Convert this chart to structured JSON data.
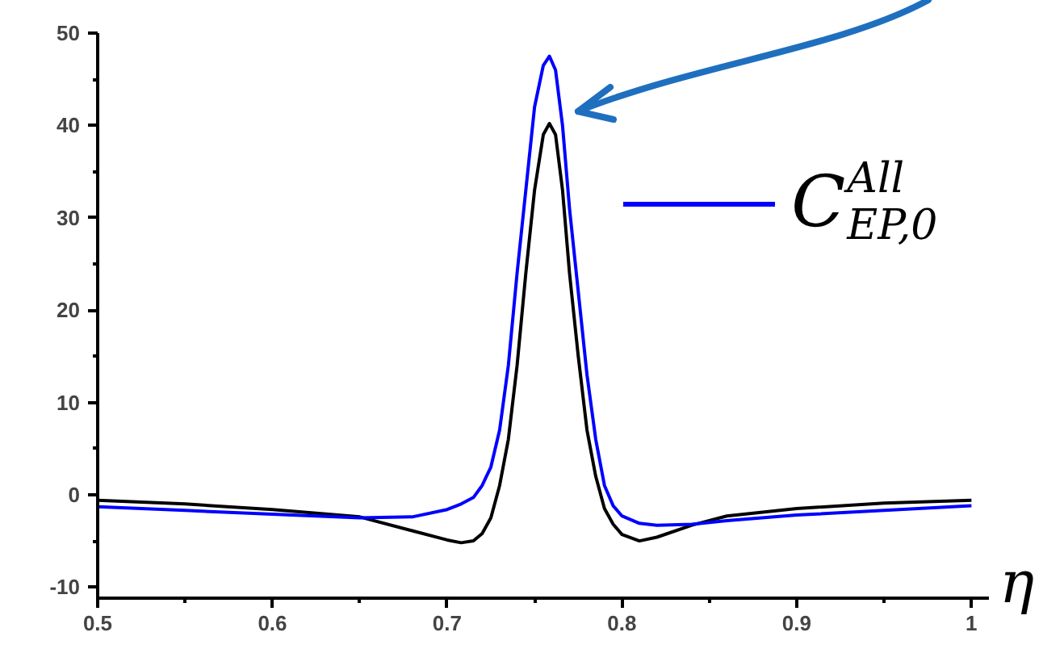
{
  "chart_data": {
    "type": "line",
    "xlabel": "η",
    "x": [
      0.5,
      0.55,
      0.6,
      0.65,
      0.68,
      0.7,
      0.708,
      0.715,
      0.72,
      0.725,
      0.73,
      0.735,
      0.74,
      0.745,
      0.75,
      0.755,
      0.7585,
      0.762,
      0.766,
      0.77,
      0.775,
      0.78,
      0.785,
      0.79,
      0.795,
      0.8,
      0.81,
      0.82,
      0.84,
      0.86,
      0.9,
      0.95,
      1.0
    ],
    "series": [
      {
        "color": "#000000",
        "values": [
          -0.6,
          -1.0,
          -1.6,
          -2.4,
          -3.9,
          -4.9,
          -5.2,
          -5.0,
          -4.2,
          -2.5,
          1,
          6,
          14,
          24,
          33,
          39,
          40.2,
          39,
          33,
          24,
          15,
          7,
          2,
          -1.5,
          -3.2,
          -4.3,
          -5.0,
          -4.6,
          -3.3,
          -2.3,
          -1.5,
          -0.9,
          -0.6
        ]
      },
      {
        "name": "C$^{All}$$_{EP,0}$",
        "color": "#0000ff",
        "values": [
          -1.3,
          -1.7,
          -2.1,
          -2.5,
          -2.4,
          -1.6,
          -1.0,
          -0.3,
          1,
          3,
          7,
          14,
          24,
          33,
          42,
          46.5,
          47.5,
          46,
          40,
          31,
          22,
          13,
          6,
          1,
          -1.2,
          -2.3,
          -3.1,
          -3.3,
          -3.2,
          -2.8,
          -2.2,
          -1.7,
          -1.2
        ]
      }
    ],
    "xlim": [
      0.5,
      1.01
    ],
    "ylim": [
      -11.2,
      50
    ],
    "xticks": [
      0.5,
      {
        "value": 0.55,
        "label": null
      },
      0.6,
      {
        "value": 0.65,
        "label": null
      },
      0.7,
      {
        "value": 0.75,
        "label": null
      },
      0.8,
      {
        "value": 0.85,
        "label": null
      },
      0.9,
      {
        "value": 0.95,
        "label": null
      },
      1
    ],
    "yticks": [
      -10,
      {
        "value": -5,
        "label": null
      },
      0,
      {
        "value": 5,
        "label": null
      },
      10,
      {
        "value": 15,
        "label": null
      },
      20,
      {
        "value": 25,
        "label": null
      },
      30,
      {
        "value": 35,
        "label": null
      },
      40,
      {
        "value": 45,
        "label": null
      },
      50
    ],
    "legend": "top right",
    "line_style": "solid",
    "marker": "none",
    "grid": false
  }
}
